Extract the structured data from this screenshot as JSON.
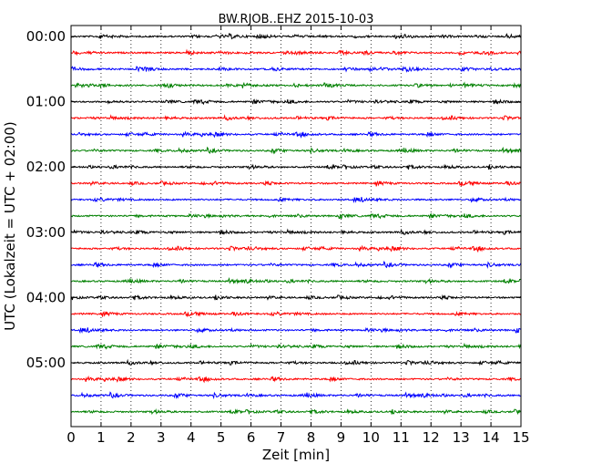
{
  "chart_data": {
    "type": "line",
    "title": "BW.RJOB..EHZ 2015-10-03",
    "xlabel": "Zeit  [min]",
    "ylabel": "UTC (Lokalzeit = UTC + 02:00)",
    "xlim": [
      0,
      15
    ],
    "x_ticks": [
      "0",
      "1",
      "2",
      "3",
      "4",
      "5",
      "6",
      "7",
      "8",
      "9",
      "10",
      "11",
      "12",
      "13",
      "14",
      "15"
    ],
    "y_ticks": [
      "00:00",
      "01:00",
      "02:00",
      "03:00",
      "04:00",
      "05:00"
    ],
    "grid": "vertical dotted lines at each minute",
    "trace_interval_minutes": 15,
    "trace_count": 24,
    "trace_colors": [
      "#000000",
      "#ff0000",
      "#0000ff",
      "#008000"
    ],
    "series": [
      {
        "start": "00:00",
        "color": "#000000"
      },
      {
        "start": "00:15",
        "color": "#ff0000"
      },
      {
        "start": "00:30",
        "color": "#0000ff"
      },
      {
        "start": "00:45",
        "color": "#008000"
      },
      {
        "start": "01:00",
        "color": "#000000"
      },
      {
        "start": "01:15",
        "color": "#ff0000"
      },
      {
        "start": "01:30",
        "color": "#0000ff"
      },
      {
        "start": "01:45",
        "color": "#008000"
      },
      {
        "start": "02:00",
        "color": "#000000"
      },
      {
        "start": "02:15",
        "color": "#ff0000"
      },
      {
        "start": "02:30",
        "color": "#0000ff"
      },
      {
        "start": "02:45",
        "color": "#008000"
      },
      {
        "start": "03:00",
        "color": "#000000"
      },
      {
        "start": "03:15",
        "color": "#ff0000"
      },
      {
        "start": "03:30",
        "color": "#0000ff"
      },
      {
        "start": "03:45",
        "color": "#008000"
      },
      {
        "start": "04:00",
        "color": "#000000"
      },
      {
        "start": "04:15",
        "color": "#ff0000"
      },
      {
        "start": "04:30",
        "color": "#0000ff"
      },
      {
        "start": "04:45",
        "color": "#008000"
      },
      {
        "start": "05:00",
        "color": "#000000"
      },
      {
        "start": "05:15",
        "color": "#ff0000"
      },
      {
        "start": "05:30",
        "color": "#0000ff"
      },
      {
        "start": "05:45",
        "color": "#008000"
      }
    ]
  }
}
